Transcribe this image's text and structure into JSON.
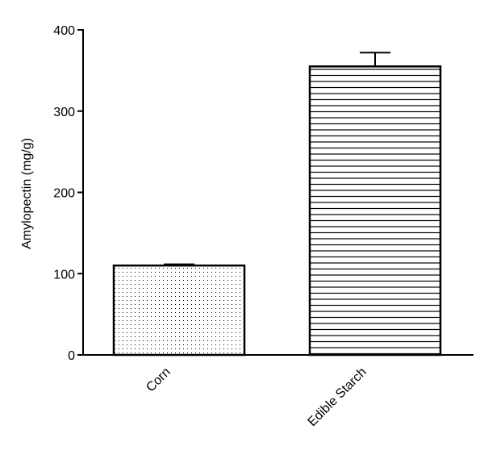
{
  "chart_data": {
    "type": "bar",
    "ylabel": "Amylopectin (mg/g)",
    "categories": [
      "Corn",
      "Edible Starch"
    ],
    "values": [
      110,
      355
    ],
    "errors": [
      1.5,
      17
    ],
    "fills": [
      "dots",
      "horizontal-lines"
    ],
    "color": "#000000",
    "ylim": [
      0,
      400
    ],
    "yticks": [
      0,
      100,
      200,
      300,
      400
    ]
  }
}
